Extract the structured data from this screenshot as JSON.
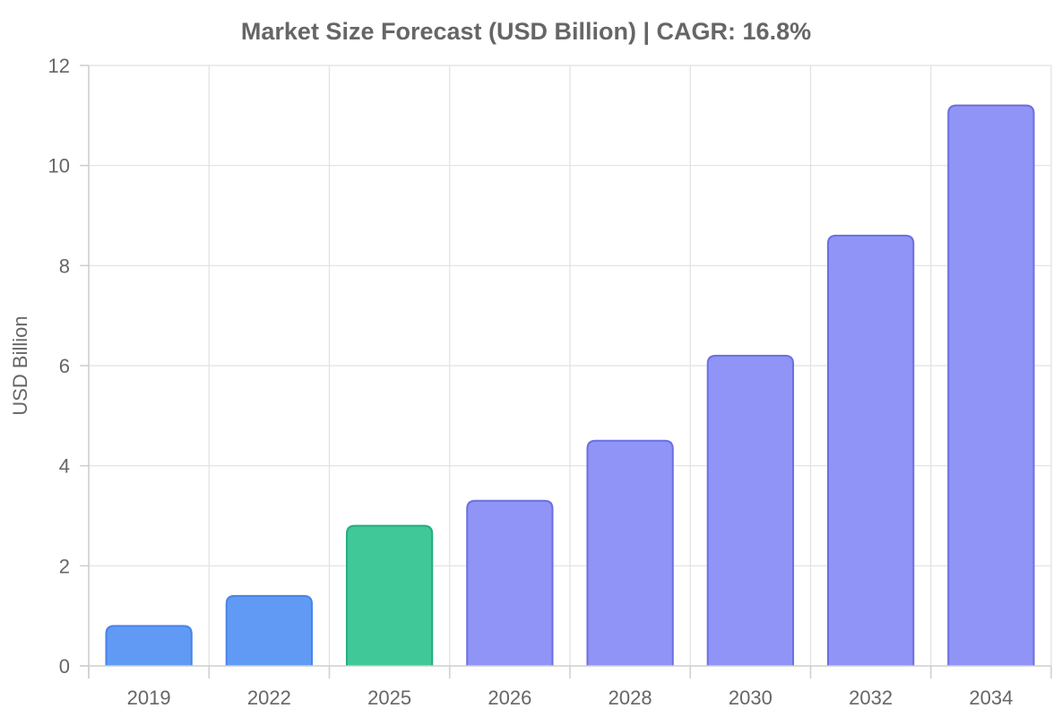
{
  "chart_data": {
    "type": "bar",
    "title": "Market Size Forecast (USD Billion) | CAGR: 16.8%",
    "xlabel": "",
    "ylabel": "USD Billion",
    "categories": [
      "2019",
      "2022",
      "2025",
      "2026",
      "2028",
      "2030",
      "2032",
      "2034"
    ],
    "values": [
      0.8,
      1.4,
      2.8,
      3.3,
      4.5,
      6.2,
      8.6,
      11.2
    ],
    "bar_colors": [
      "#609af5",
      "#609af5",
      "#40c898",
      "#9094f6",
      "#9094f6",
      "#9094f6",
      "#9094f6",
      "#9094f6"
    ],
    "bar_border_colors": [
      "#4a84e6",
      "#4a84e6",
      "#25ad7f",
      "#6c6fe0",
      "#6c6fe0",
      "#6c6fe0",
      "#6c6fe0",
      "#6c6fe0"
    ],
    "ylim": [
      0,
      12
    ],
    "yticks": [
      0,
      2,
      4,
      6,
      8,
      10,
      12
    ],
    "grid": true
  }
}
